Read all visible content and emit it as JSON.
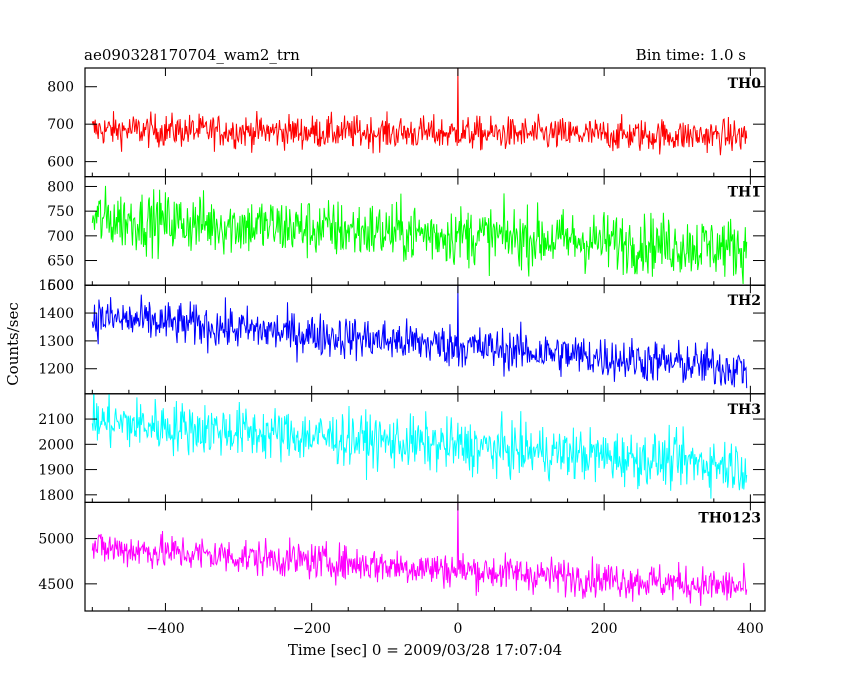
{
  "header": {
    "left_title": "ae090328170704_wam2_trn",
    "right_title": "Bin time: 1.0 s"
  },
  "chart_data": {
    "type": "line",
    "xlabel": "Time [sec] 0 = 2009/03/28 17:07:04",
    "ylabel": "Counts/sec",
    "xlim": [
      -510,
      420
    ],
    "x_range": [
      -500,
      395
    ],
    "x_ticks": [
      -400,
      -200,
      0,
      200,
      400
    ],
    "x_tick_labels": [
      "−400",
      "−200",
      "0",
      "200",
      "400"
    ],
    "panels": [
      {
        "name": "TH0",
        "color": "#ff0000",
        "ylim": [
          560,
          850
        ],
        "y_ticks": [
          600,
          700,
          800
        ],
        "y_tick_labels": [
          "600",
          "700",
          "800"
        ],
        "trend_start": 685,
        "trend_end": 668,
        "noise": 40,
        "spike": {
          "x": 0,
          "y": 850
        }
      },
      {
        "name": "TH1",
        "color": "#00ff00",
        "ylim": [
          600,
          820
        ],
        "y_ticks": [
          600,
          650,
          700,
          750,
          800
        ],
        "y_tick_labels": [
          "600",
          "650",
          "700",
          "750",
          "800"
        ],
        "trend_start": 735,
        "trend_end": 675,
        "noise": 55,
        "spike": null
      },
      {
        "name": "TH2",
        "color": "#0000ff",
        "ylim": [
          1110,
          1500
        ],
        "y_ticks": [
          1200,
          1300,
          1400,
          1500
        ],
        "y_tick_labels": [
          "1200",
          "1300",
          "1400",
          "1500"
        ],
        "trend_start": 1385,
        "trend_end": 1200,
        "noise": 70,
        "spike": {
          "x": 0,
          "y": 1500
        }
      },
      {
        "name": "TH3",
        "color": "#00ffff",
        "ylim": [
          1770,
          2200
        ],
        "y_ticks": [
          1800,
          1900,
          2000,
          2100
        ],
        "y_tick_labels": [
          "1800",
          "1900",
          "2000",
          "2100"
        ],
        "trend_start": 2090,
        "trend_end": 1915,
        "noise": 95,
        "spike": null
      },
      {
        "name": "TH0123",
        "color": "#ff00ff",
        "ylim": [
          4200,
          5400
        ],
        "y_ticks": [
          4500,
          5000
        ],
        "y_tick_labels": [
          "4500",
          "5000"
        ],
        "trend_start": 4900,
        "trend_end": 4460,
        "noise": 180,
        "spike": {
          "x": 0,
          "y": 5400
        }
      }
    ]
  }
}
